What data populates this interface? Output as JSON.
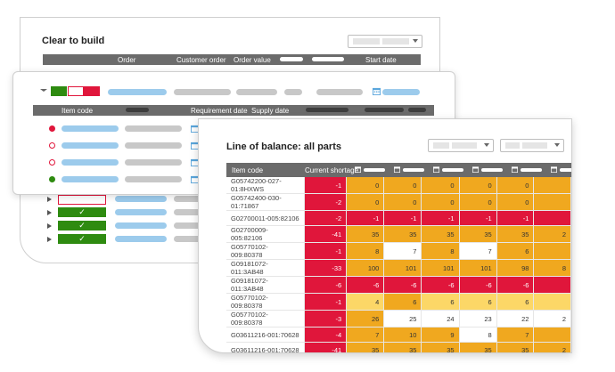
{
  "clear_to_build": {
    "title": "Clear to build",
    "headers": {
      "order": "Order",
      "customer_order": "Customer order",
      "order_value": "Order value",
      "start_date": "Start date"
    }
  },
  "detail_panel": {
    "headers": {
      "item_code": "Item code",
      "requirement_date": "Requirement date",
      "supply_date": "Supply date"
    },
    "status_colors": [
      "#e0163b",
      "#e0163b",
      "#e0163b",
      "#2e8b10"
    ]
  },
  "lob": {
    "title": "Line of balance: all parts",
    "headers": {
      "item_code": "Item code",
      "current_shortage": "Current shortage"
    },
    "rows": [
      {
        "code": "G05742200-027-01:8HXWS",
        "shortage": "-1",
        "cells": [
          "0",
          "0",
          "0",
          "0",
          "0",
          ""
        ]
      },
      {
        "code": "G05742400-030-01:71867",
        "shortage": "-2",
        "cells": [
          "0",
          "0",
          "0",
          "0",
          "0",
          ""
        ]
      },
      {
        "code": "G02700011-005:82106",
        "shortage": "-2",
        "cells": [
          "-1",
          "-1",
          "-1",
          "-1",
          "-1",
          ""
        ]
      },
      {
        "code": "G02700009-005:82106",
        "shortage": "-41",
        "cells": [
          "35",
          "35",
          "35",
          "35",
          "35",
          "2"
        ]
      },
      {
        "code": "G05770102-009:80378",
        "shortage": "-1",
        "cells": [
          "8",
          "7",
          "8",
          "7",
          "6",
          ""
        ]
      },
      {
        "code": "G09181072-011:3AB48",
        "shortage": "-33",
        "cells": [
          "100",
          "101",
          "101",
          "101",
          "98",
          "8"
        ]
      },
      {
        "code": "G09181072-011:3AB48",
        "shortage": "-6",
        "cells": [
          "-6",
          "-6",
          "-6",
          "-6",
          "-6",
          ""
        ]
      },
      {
        "code": "G05770102-009:80378",
        "shortage": "-1",
        "cells": [
          "4",
          "6",
          "6",
          "6",
          "6",
          ""
        ]
      },
      {
        "code": "G05770102-009:80378",
        "shortage": "-3",
        "cells": [
          "26",
          "25",
          "24",
          "23",
          "22",
          "2"
        ]
      },
      {
        "code": "G03611216-001:70628",
        "shortage": "-4",
        "cells": [
          "7",
          "10",
          "9",
          "8",
          "7",
          ""
        ]
      },
      {
        "code": "G03611216-001:70628",
        "shortage": "-41",
        "cells": [
          "35",
          "35",
          "35",
          "35",
          "35",
          "2"
        ]
      }
    ],
    "cell_colors": [
      [
        "#f0a81f",
        "#f0a81f",
        "#f0a81f",
        "#f0a81f",
        "#f0a81f",
        "#f0a81f"
      ],
      [
        "#f0a81f",
        "#f0a81f",
        "#f0a81f",
        "#f0a81f",
        "#f0a81f",
        "#f0a81f"
      ],
      [
        "#e0163b",
        "#e0163b",
        "#e0163b",
        "#e0163b",
        "#e0163b",
        "#e0163b"
      ],
      [
        "#f0a81f",
        "#f0a81f",
        "#f0a81f",
        "#f0a81f",
        "#f0a81f",
        "#f0a81f"
      ],
      [
        "#f0a81f",
        "#ffffff",
        "#f0a81f",
        "#ffffff",
        "#f0a81f",
        "#f0a81f"
      ],
      [
        "#f0a81f",
        "#f0a81f",
        "#f0a81f",
        "#f0a81f",
        "#f0a81f",
        "#f0a81f"
      ],
      [
        "#e0163b",
        "#e0163b",
        "#e0163b",
        "#e0163b",
        "#e0163b",
        "#e0163b"
      ],
      [
        "#fcd767",
        "#f0a81f",
        "#fcd767",
        "#fcd767",
        "#fcd767",
        "#fcd767"
      ],
      [
        "#f0a81f",
        "#ffffff",
        "#ffffff",
        "#ffffff",
        "#ffffff",
        "#ffffff"
      ],
      [
        "#f0a81f",
        "#f0a81f",
        "#f0a81f",
        "#ffffff",
        "#f0a81f",
        "#f0a81f"
      ],
      [
        "#f0a81f",
        "#f0a81f",
        "#f0a81f",
        "#f0a81f",
        "#f0a81f",
        "#f0a81f"
      ]
    ]
  }
}
